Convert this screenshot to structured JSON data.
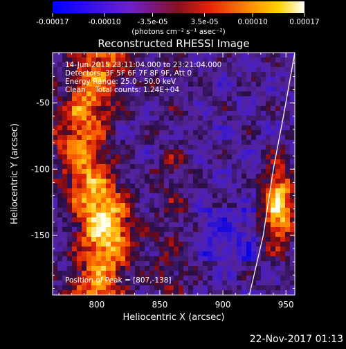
{
  "chart_data": {
    "type": "heatmap",
    "title": "Reconstructed RHESSI Image",
    "xlabel": "Heliocentric X (arcsec)",
    "ylabel": "Heliocentric Y (arcsec)",
    "xlim": [
      765,
      957
    ],
    "ylim": [
      -195,
      -12
    ],
    "x_ticks": [
      800,
      850,
      900,
      950
    ],
    "y_ticks": [
      -50,
      -100,
      -150
    ],
    "colorbar": {
      "min": -0.00017,
      "max": 0.00017,
      "ticks": [
        -0.00017,
        -0.0001,
        -3.5e-05,
        3.5e-05,
        0.0001,
        0.00017
      ],
      "tick_labels": [
        "-0.00017",
        "-0.00010",
        "-3.5e-05",
        "3.5e-05",
        "0.00010",
        "0.00017"
      ],
      "units_label": "(photons cm⁻² s⁻¹ asec⁻²)",
      "colormap": "blue-purple-red-orange-yellow-white"
    },
    "annotations": [
      "14-Jun-2015 23:11:04.000 to 23:21:04.000",
      "Detectors: 3F 5F 6F 7F 8F 9F, Att 0",
      "Energy Range: 25.0 - 50.0 keV",
      "Clean    Total counts: 1.24E+04"
    ],
    "peak_label": "Position of Peak = [807,-138]",
    "peak_position": [
      807,
      -138
    ],
    "limb_curve": [
      [
        957,
        -12
      ],
      [
        948,
        -60
      ],
      [
        940,
        -100
      ],
      [
        932,
        -150
      ],
      [
        921,
        -195
      ]
    ]
  },
  "footer": {
    "date": "22-Nov-2017 01:13"
  }
}
